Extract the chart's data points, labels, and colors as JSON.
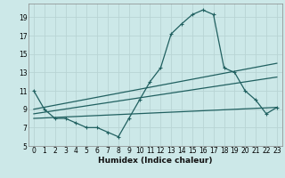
{
  "xlabel": "Humidex (Indice chaleur)",
  "bg_color": "#cce8e8",
  "grid_color": "#b8d4d4",
  "line_color": "#206060",
  "xlim": [
    -0.5,
    23.5
  ],
  "ylim": [
    5,
    20.5
  ],
  "xticks": [
    0,
    1,
    2,
    3,
    4,
    5,
    6,
    7,
    8,
    9,
    10,
    11,
    12,
    13,
    14,
    15,
    16,
    17,
    18,
    19,
    20,
    21,
    22,
    23
  ],
  "yticks": [
    5,
    7,
    9,
    11,
    13,
    15,
    17,
    19
  ],
  "line1_x": [
    0,
    1,
    2,
    3,
    4,
    5,
    6,
    7,
    8,
    9,
    10,
    11,
    12,
    13,
    14,
    15,
    16,
    17,
    18,
    19,
    20,
    21,
    22,
    23
  ],
  "line1_y": [
    11,
    9,
    8,
    8,
    7.5,
    7,
    7,
    6.5,
    6,
    8,
    10,
    12,
    13.5,
    17.2,
    18.3,
    19.3,
    19.8,
    19.3,
    13.5,
    13,
    11,
    10,
    8.5,
    9.2
  ],
  "line2_x": [
    0,
    23
  ],
  "line2_y": [
    9,
    14
  ],
  "line3_x": [
    0,
    23
  ],
  "line3_y": [
    8.5,
    12.5
  ],
  "line4_x": [
    0,
    23
  ],
  "line4_y": [
    8,
    9.2
  ]
}
